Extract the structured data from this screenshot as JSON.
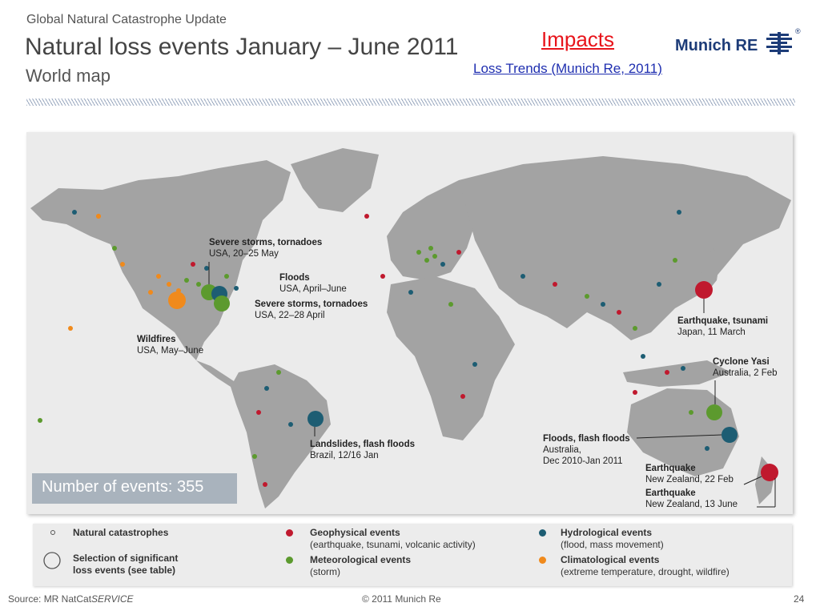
{
  "header": {
    "kicker": "Global Natural Catastrophe Update",
    "title": "Natural loss events January – June 2011",
    "subtitle": "World map",
    "impacts": "Impacts",
    "loss_trends": "Loss Trends (Munich Re, 2011)",
    "brand": "Munich RE",
    "brand_mark": "®"
  },
  "map": {
    "event_count_label": "Number of events: 355",
    "callouts": {
      "usa_may": {
        "title": "Severe storms, tornadoes",
        "detail": "USA, 20–25 May"
      },
      "usa_floods": {
        "title": "Floods",
        "detail": "USA, April–June"
      },
      "usa_april": {
        "title": "Severe storms, tornadoes",
        "detail": "USA, 22–28 April"
      },
      "usa_wildfires": {
        "title": "Wildfires",
        "detail": "USA, May–June"
      },
      "brazil": {
        "title": "Landslides, flash floods",
        "detail": "Brazil, 12/16 Jan"
      },
      "japan": {
        "title": "Earthquake, tsunami",
        "detail": "Japan, 11 March"
      },
      "yasi": {
        "title": "Cyclone Yasi",
        "detail": "Australia, 2 Feb"
      },
      "aus_floods": {
        "title": "Floods, flash floods",
        "detail1": "Australia,",
        "detail2": "Dec 2010-Jan 2011"
      },
      "nz_feb": {
        "title": "Earthquake",
        "detail": "New Zealand, 22 Feb"
      },
      "nz_june": {
        "title": "Earthquake",
        "detail": "New Zealand, 13 June"
      }
    }
  },
  "legend": {
    "natural_catastrophes": "Natural catastrophes",
    "significant_1": "Selection of significant",
    "significant_2": "loss events (see table)",
    "geo_title": "Geophysical events",
    "geo_desc": "(earthquake, tsunami, volcanic activity)",
    "met_title": "Meteorological events",
    "met_desc": "(storm)",
    "hyd_title": "Hydrological events",
    "hyd_desc": "(flood, mass movement)",
    "cli_title": "Climatological events",
    "cli_desc": "(extreme temperature, drought, wildfire)"
  },
  "colors": {
    "geophysical": "#c0192e",
    "meteorological": "#5c9a2e",
    "hydrological": "#1d5d73",
    "climatological": "#f08a1c"
  },
  "footer": {
    "source_prefix": "Source: MR NatCat",
    "source_suffix": "SERVICE",
    "copyright": "© 2011 Munich Re",
    "page": "24"
  }
}
